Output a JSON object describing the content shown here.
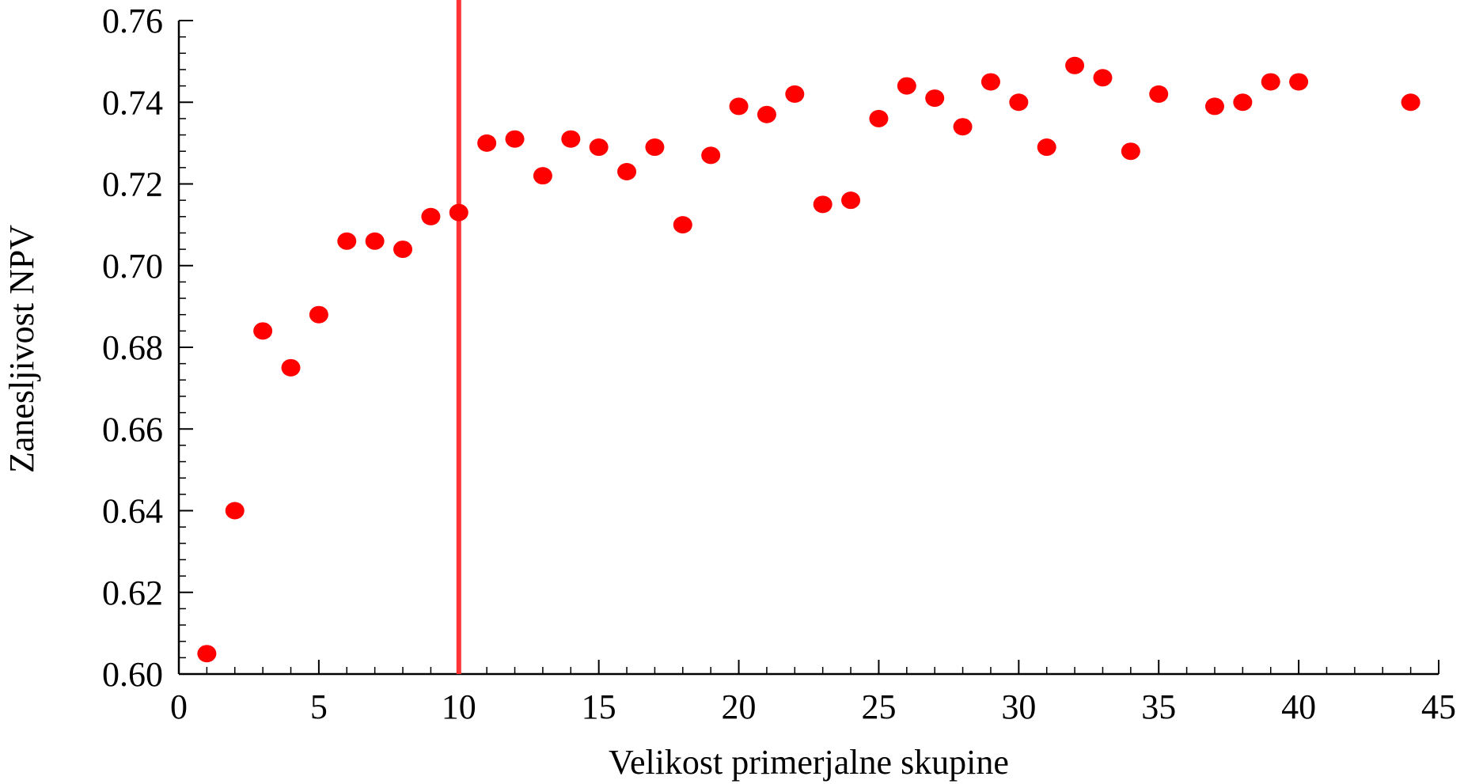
{
  "chart_data": {
    "type": "scatter",
    "title": "",
    "xlabel": "Velikost primerjalne skupine",
    "ylabel": "Zanesljivost NPV",
    "xlim": [
      0,
      45
    ],
    "ylim": [
      0.6,
      0.76
    ],
    "x_ticks": [
      "0",
      "5",
      "10",
      "15",
      "20",
      "25",
      "30",
      "35",
      "40",
      "45"
    ],
    "y_ticks": [
      "0.60",
      "0.62",
      "0.64",
      "0.66",
      "0.68",
      "0.70",
      "0.72",
      "0.74",
      "0.76"
    ],
    "grid": false,
    "legend": "none",
    "marker_color": "#ff0000",
    "vline": {
      "x": 10,
      "color": "#ff3333"
    },
    "points": [
      {
        "x": 1,
        "y": 0.605
      },
      {
        "x": 2,
        "y": 0.64
      },
      {
        "x": 3,
        "y": 0.684
      },
      {
        "x": 4,
        "y": 0.675
      },
      {
        "x": 5,
        "y": 0.688
      },
      {
        "x": 6,
        "y": 0.706
      },
      {
        "x": 7,
        "y": 0.706
      },
      {
        "x": 8,
        "y": 0.704
      },
      {
        "x": 9,
        "y": 0.712
      },
      {
        "x": 10,
        "y": 0.713
      },
      {
        "x": 11,
        "y": 0.73
      },
      {
        "x": 12,
        "y": 0.731
      },
      {
        "x": 13,
        "y": 0.722
      },
      {
        "x": 14,
        "y": 0.731
      },
      {
        "x": 15,
        "y": 0.729
      },
      {
        "x": 16,
        "y": 0.723
      },
      {
        "x": 17,
        "y": 0.729
      },
      {
        "x": 18,
        "y": 0.71
      },
      {
        "x": 19,
        "y": 0.727
      },
      {
        "x": 20,
        "y": 0.739
      },
      {
        "x": 21,
        "y": 0.737
      },
      {
        "x": 22,
        "y": 0.742
      },
      {
        "x": 23,
        "y": 0.715
      },
      {
        "x": 24,
        "y": 0.716
      },
      {
        "x": 25,
        "y": 0.736
      },
      {
        "x": 26,
        "y": 0.744
      },
      {
        "x": 27,
        "y": 0.741
      },
      {
        "x": 28,
        "y": 0.734
      },
      {
        "x": 29,
        "y": 0.745
      },
      {
        "x": 30,
        "y": 0.74
      },
      {
        "x": 31,
        "y": 0.729
      },
      {
        "x": 32,
        "y": 0.749
      },
      {
        "x": 33,
        "y": 0.746
      },
      {
        "x": 34,
        "y": 0.728
      },
      {
        "x": 35,
        "y": 0.742
      },
      {
        "x": 37,
        "y": 0.739
      },
      {
        "x": 38,
        "y": 0.74
      },
      {
        "x": 39,
        "y": 0.745
      },
      {
        "x": 40,
        "y": 0.745
      },
      {
        "x": 44,
        "y": 0.74
      }
    ]
  }
}
